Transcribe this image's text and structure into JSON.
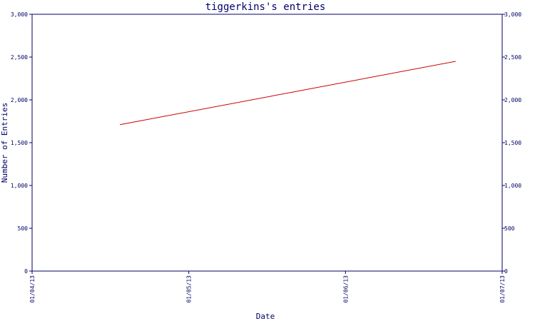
{
  "chart_data": {
    "type": "line",
    "title": "tiggerkins's entries",
    "xlabel": "Date",
    "ylabel": "Number of Entries",
    "x_ticks": [
      "01/04/13",
      "01/05/13",
      "01/06/13",
      "01/07/13"
    ],
    "x_range": [
      "2013-04-01",
      "2013-07-01"
    ],
    "ylim": [
      0,
      3000
    ],
    "y_ticks": [
      0,
      500,
      1000,
      1500,
      2000,
      2500,
      3000
    ],
    "y_tick_labels": [
      "0",
      "500",
      "1,000",
      "1,500",
      "2,000",
      "2,500",
      "3,000"
    ],
    "right_axis_ticks": true,
    "grid": false,
    "series": [
      {
        "color": "#cc0000",
        "points": [
          {
            "x": "2013-04-18",
            "y": 1710
          },
          {
            "x": "2013-06-22",
            "y": 2450
          }
        ]
      }
    ],
    "colors": {
      "axis": "#000066",
      "text": "#000066",
      "line": "#cc0000",
      "background": "#ffffff"
    }
  }
}
